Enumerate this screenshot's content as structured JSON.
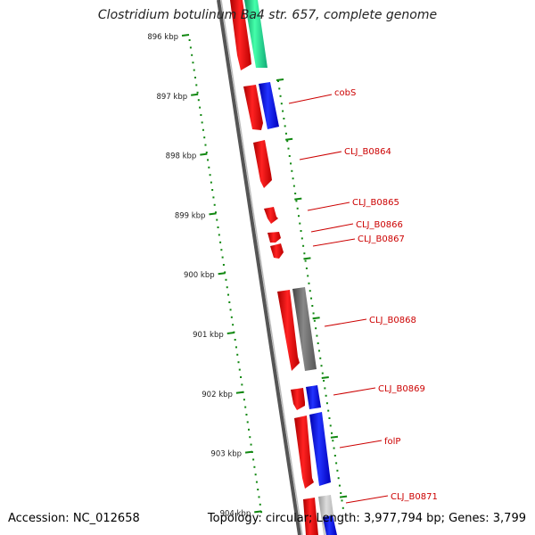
{
  "title": "Clostridium botulinum Ba4 str. 657, complete genome",
  "footer": {
    "accession": "Accession: NC_012658",
    "summary": "Topology: circular; Length: 3,977,794 bp; Genes: 3,799"
  },
  "ruler": {
    "unit": "kbp",
    "ticks": [
      "896 kbp",
      "897 kbp",
      "898 kbp",
      "899 kbp",
      "900 kbp",
      "901 kbp",
      "902 kbp",
      "903 kbp",
      "904 kbp"
    ]
  },
  "gene_labels": [
    {
      "text": "cobS",
      "color": "#cc0000"
    },
    {
      "text": "CLJ_B0864",
      "color": "#cc0000"
    },
    {
      "text": "CLJ_B0865",
      "color": "#cc0000"
    },
    {
      "text": "CLJ_B0866",
      "color": "#cc0000"
    },
    {
      "text": "CLJ_B0867",
      "color": "#cc0000"
    },
    {
      "text": "CLJ_B0868",
      "color": "#cc0000"
    },
    {
      "text": "CLJ_B0869",
      "color": "#cc0000"
    },
    {
      "text": "folP",
      "color": "#cc0000"
    },
    {
      "text": "CLJ_B0871",
      "color": "#cc0000"
    }
  ],
  "feature_colors": {
    "cds_red": "#ee0000",
    "blue": "#0000ee",
    "green": "#22ee99",
    "gray": "#666666",
    "light_gray": "#bbbbbb",
    "tick_green": "#118811"
  }
}
